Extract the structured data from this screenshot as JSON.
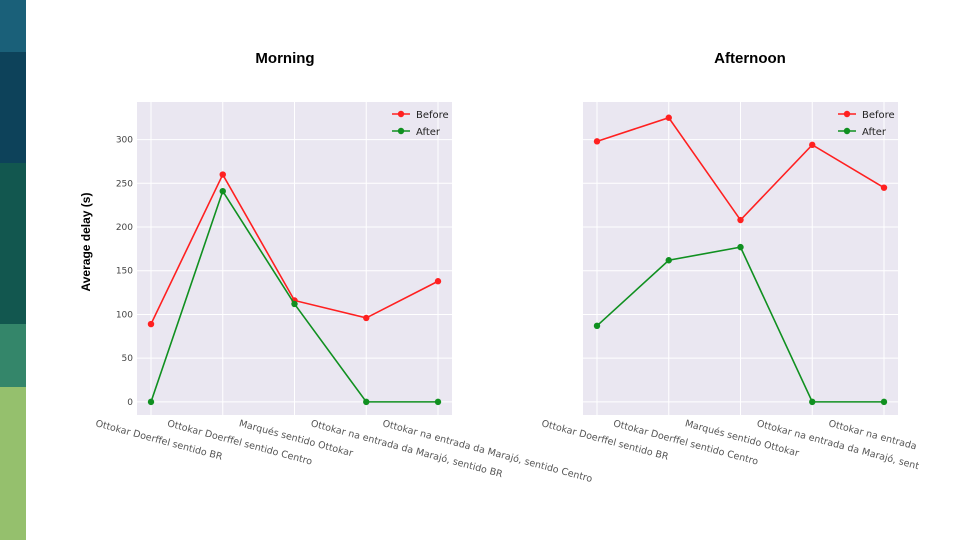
{
  "slide": {
    "sidebar_colors": [
      "#1a6079",
      "#0d425a",
      "#12574f",
      "#34866a",
      "#95c06d"
    ]
  },
  "colors": {
    "plot_bg": "#eae7f1",
    "grid": "#ffffff",
    "before": "#ff2020",
    "after": "#109020"
  },
  "shared_ylabel": "Average delay (s)",
  "chart_data": [
    {
      "type": "line",
      "title": "Morning",
      "xlabel": "",
      "ylabel": "Average delay (s)",
      "categories": [
        "Ottokar Doerffel sentido BR",
        "Ottokar Doerffel sentido Centro",
        "Marqués sentido Ottokar",
        "Ottokar na entrada da Marajó, sentido BR",
        "Ottokar na entrada da Marajó, sentido Centro"
      ],
      "series": [
        {
          "name": "Before",
          "values": [
            89,
            260,
            116,
            96,
            138
          ]
        },
        {
          "name": "After",
          "values": [
            0,
            241,
            112,
            0,
            0
          ]
        }
      ],
      "ylim": [
        -15,
        343
      ],
      "yticks": [
        0,
        50,
        100,
        150,
        200,
        250,
        300
      ],
      "show_yticks": true,
      "grid": true,
      "legend": "top-right"
    },
    {
      "type": "line",
      "title": "Afternoon",
      "xlabel": "",
      "ylabel": "",
      "categories": [
        "Ottokar Doerffel sentido BR",
        "Ottokar Doerffel sentido Centro",
        "Marqués sentido Ottokar",
        "Ottokar na entrada da Marajó, sentido BR",
        "Ottokar na entrada da Marajó, s"
      ],
      "series": [
        {
          "name": "Before",
          "values": [
            298,
            325,
            208,
            294,
            245
          ]
        },
        {
          "name": "After",
          "values": [
            87,
            162,
            177,
            0,
            0
          ]
        }
      ],
      "ylim": [
        -15,
        343
      ],
      "yticks": [
        0,
        50,
        100,
        150,
        200,
        250,
        300
      ],
      "show_yticks": false,
      "grid": true,
      "legend": "top-right"
    }
  ]
}
